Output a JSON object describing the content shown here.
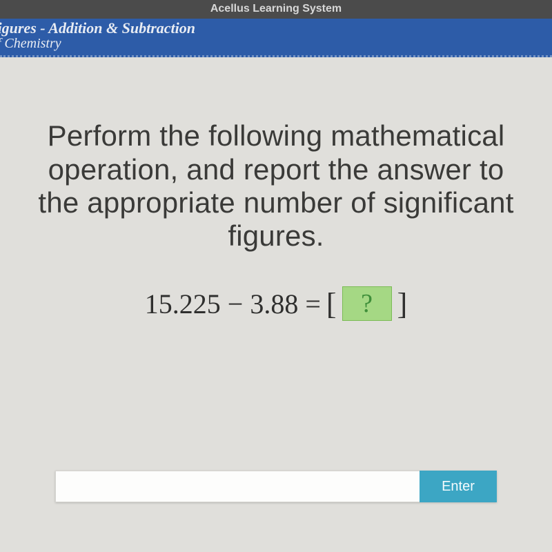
{
  "topbar": {
    "title": "Acellus Learning System"
  },
  "subheader": {
    "line1": "nt Figures - Addition & Subtraction",
    "line2": "e of Chemistry"
  },
  "prompt": "Perform the following mathematical operation, and report the answer to the appropriate number of significant figures.",
  "equation": {
    "lhs": "15.225 − 3.88 =",
    "placeholder": "?"
  },
  "input": {
    "value": "",
    "enter_label": "Enter"
  },
  "colors": {
    "topbar_bg": "#4b4b4b",
    "subheader_bg": "#2d5ca8",
    "page_bg": "#e0dfdb",
    "answer_box_bg": "#a5d884",
    "answer_box_fg": "#3f8f3a",
    "enter_btn_bg": "#3ca6c4"
  }
}
